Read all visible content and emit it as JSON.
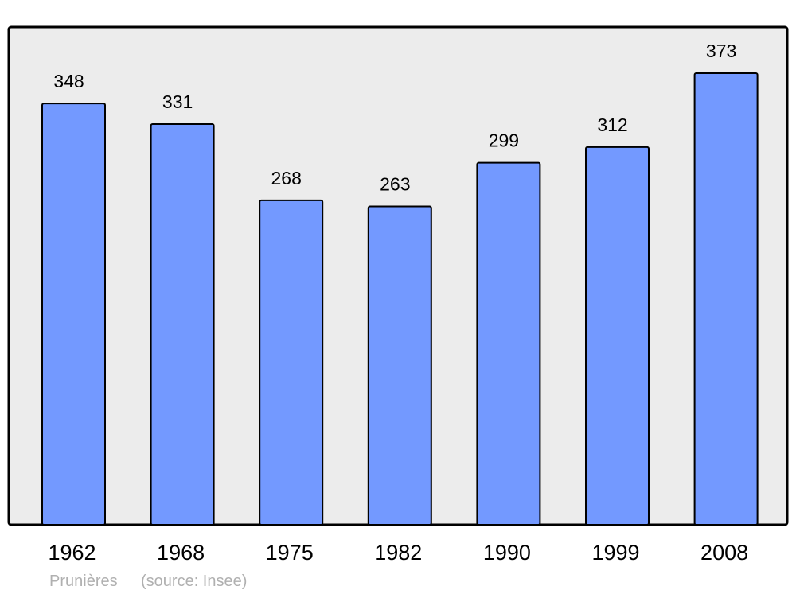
{
  "chart_data": {
    "type": "bar",
    "categories": [
      "1962",
      "1968",
      "1975",
      "1982",
      "1990",
      "1999",
      "2008"
    ],
    "values": [
      348,
      331,
      268,
      263,
      299,
      312,
      373
    ],
    "title": "",
    "xlabel": "",
    "ylabel": "",
    "ylim": [
      0,
      373
    ],
    "grid": false,
    "data_labels": true,
    "colors": {
      "bar": "#7399ff",
      "plot_background": "#ececec",
      "border": "#000000"
    }
  },
  "footer": {
    "place": "Prunières",
    "source": "(source: Insee)"
  }
}
